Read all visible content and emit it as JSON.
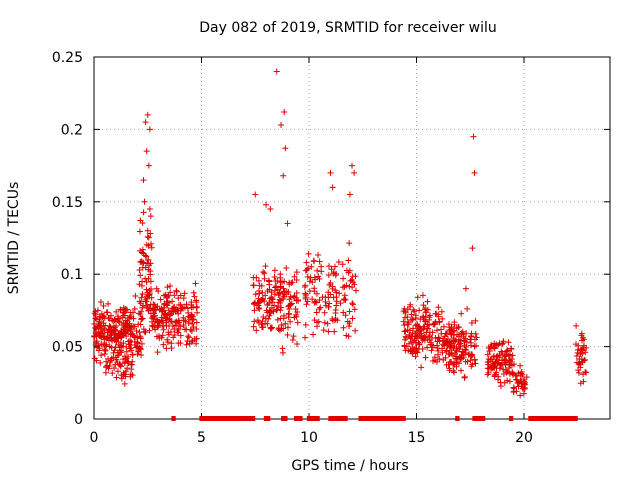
{
  "chart_data": {
    "type": "scatter",
    "title": "Day 082 of 2019, SRMTID for receiver wilu",
    "xlabel": "GPS time / hours",
    "ylabel": "SRMTID / TECUs",
    "xlim": [
      0,
      24
    ],
    "ylim": [
      0,
      0.25
    ],
    "grid": true,
    "marker": "+",
    "color": "#e00000",
    "xticks": [
      0,
      5,
      10,
      15,
      20
    ],
    "xtick_labels": [
      "0",
      "5",
      "10",
      "15",
      "20"
    ],
    "yticks": [
      0,
      0.05,
      0.1,
      0.15,
      0.2,
      0.25
    ],
    "ytick_labels": [
      "0",
      "0.05",
      "0.1",
      "0.15",
      "0.2",
      "0.25"
    ],
    "clusters": [
      {
        "x0": 0.0,
        "x1": 2.2,
        "ylo": 0.03,
        "yhi": 0.09,
        "n": 260
      },
      {
        "x0": 0.5,
        "x1": 1.8,
        "ylo": 0.02,
        "yhi": 0.05,
        "n": 45
      },
      {
        "x0": 2.1,
        "x1": 2.7,
        "ylo": 0.04,
        "yhi": 0.15,
        "n": 80
      },
      {
        "x0": 2.7,
        "x1": 4.8,
        "ylo": 0.04,
        "yhi": 0.1,
        "n": 190
      },
      {
        "x0": 7.4,
        "x1": 9.5,
        "ylo": 0.04,
        "yhi": 0.12,
        "n": 170
      },
      {
        "x0": 9.8,
        "x1": 12.2,
        "ylo": 0.04,
        "yhi": 0.13,
        "n": 130
      },
      {
        "x0": 14.4,
        "x1": 16.2,
        "ylo": 0.03,
        "yhi": 0.09,
        "n": 170
      },
      {
        "x0": 16.2,
        "x1": 17.8,
        "ylo": 0.02,
        "yhi": 0.08,
        "n": 150
      },
      {
        "x0": 18.3,
        "x1": 19.5,
        "ylo": 0.02,
        "yhi": 0.06,
        "n": 110
      },
      {
        "x0": 19.5,
        "x1": 20.2,
        "ylo": 0.01,
        "yhi": 0.04,
        "n": 40
      },
      {
        "x0": 22.4,
        "x1": 22.9,
        "ylo": 0.02,
        "yhi": 0.07,
        "n": 40
      }
    ],
    "outliers": [
      [
        2.4,
        0.205
      ],
      [
        2.5,
        0.21
      ],
      [
        2.6,
        0.2
      ],
      [
        2.45,
        0.185
      ],
      [
        2.55,
        0.175
      ],
      [
        2.3,
        0.165
      ],
      [
        2.35,
        0.15
      ],
      [
        2.6,
        0.145
      ],
      [
        2.5,
        0.13
      ],
      [
        8.5,
        0.24
      ],
      [
        8.7,
        0.203
      ],
      [
        8.85,
        0.212
      ],
      [
        8.9,
        0.187
      ],
      [
        8.8,
        0.168
      ],
      [
        7.5,
        0.155
      ],
      [
        8.0,
        0.148
      ],
      [
        8.2,
        0.145
      ],
      [
        9.0,
        0.135
      ],
      [
        11.0,
        0.17
      ],
      [
        11.1,
        0.16
      ],
      [
        12.0,
        0.175
      ],
      [
        12.1,
        0.17
      ],
      [
        11.9,
        0.155
      ],
      [
        17.65,
        0.195
      ],
      [
        17.7,
        0.17
      ],
      [
        17.6,
        0.118
      ],
      [
        17.3,
        0.09
      ]
    ],
    "zero_band": [
      [
        3.6,
        3.8
      ],
      [
        4.9,
        7.5
      ],
      [
        7.9,
        8.2
      ],
      [
        8.7,
        9.0
      ],
      [
        9.3,
        9.7
      ],
      [
        9.9,
        10.5
      ],
      [
        10.9,
        11.8
      ],
      [
        12.3,
        14.5
      ],
      [
        16.8,
        17.0
      ],
      [
        17.6,
        18.2
      ],
      [
        19.3,
        19.5
      ],
      [
        20.2,
        22.5
      ]
    ]
  }
}
